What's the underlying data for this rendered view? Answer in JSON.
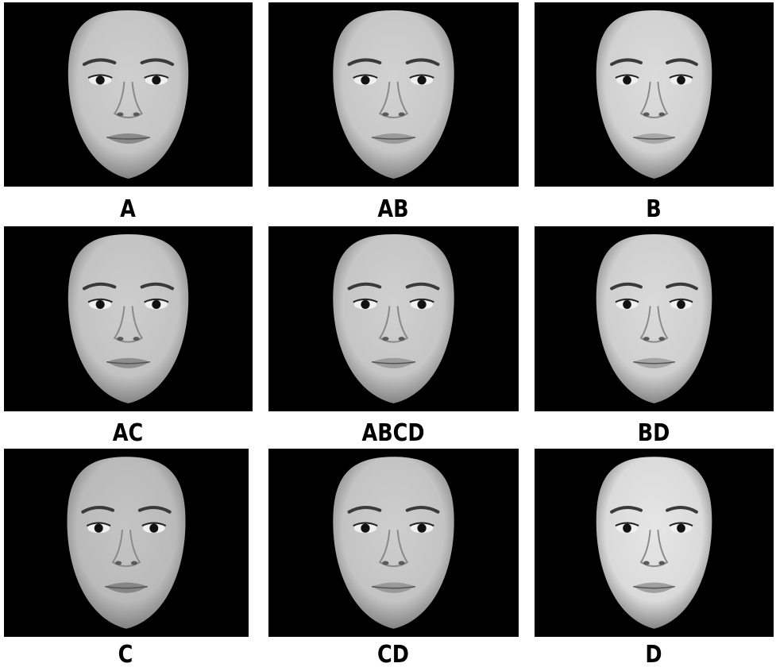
{
  "figure": {
    "panels": [
      {
        "id": "a",
        "label": "A",
        "skin": "#cfcfcf",
        "lip": "#8a8a8a"
      },
      {
        "id": "ab",
        "label": "AB",
        "skin": "#d2d2d2",
        "lip": "#9a9a9a"
      },
      {
        "id": "b",
        "label": "B",
        "skin": "#dcdcdc",
        "lip": "#a8a8a8"
      },
      {
        "id": "ac",
        "label": "AC",
        "skin": "#cdcdcd",
        "lip": "#8e8e8e"
      },
      {
        "id": "abcd",
        "label": "ABCD",
        "skin": "#d0d0d0",
        "lip": "#9c9c9c"
      },
      {
        "id": "bd",
        "label": "BD",
        "skin": "#dadada",
        "lip": "#a5a5a5"
      },
      {
        "id": "c",
        "label": "C",
        "skin": "#c4c4c4",
        "lip": "#868686"
      },
      {
        "id": "cd",
        "label": "CD",
        "skin": "#cecece",
        "lip": "#999999"
      },
      {
        "id": "d",
        "label": "D",
        "skin": "#e6e6e6",
        "lip": "#a0a0a0"
      }
    ]
  }
}
